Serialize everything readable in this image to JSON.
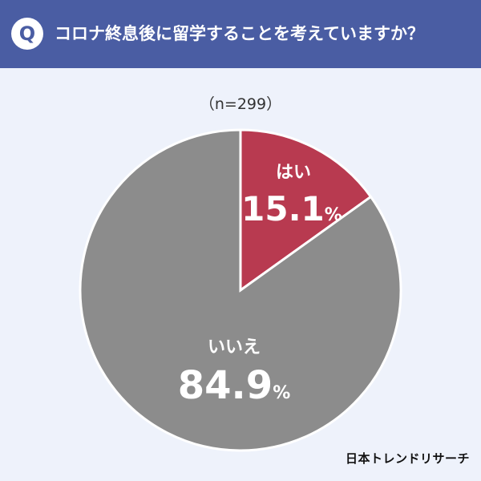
{
  "header": {
    "badge": "Q",
    "question": "コロナ終息後に留学することを考えていますか？"
  },
  "sample": "（n=299）",
  "chart_data": {
    "type": "pie",
    "title": "コロナ終息後に留学することを考えていますか？",
    "categories": [
      "はい",
      "いいえ"
    ],
    "values": [
      15.1,
      84.9
    ],
    "value_labels": [
      "15.1%",
      "84.9%"
    ],
    "colors": [
      "#b83a50",
      "#8c8c8c"
    ],
    "slice_label_color": "#ffffff",
    "start_angle": "12 o'clock",
    "direction": "clockwise"
  },
  "brand": "日本トレンドリサーチ",
  "colors": {
    "background": "#eef2fb",
    "header": "#4a5da3"
  }
}
